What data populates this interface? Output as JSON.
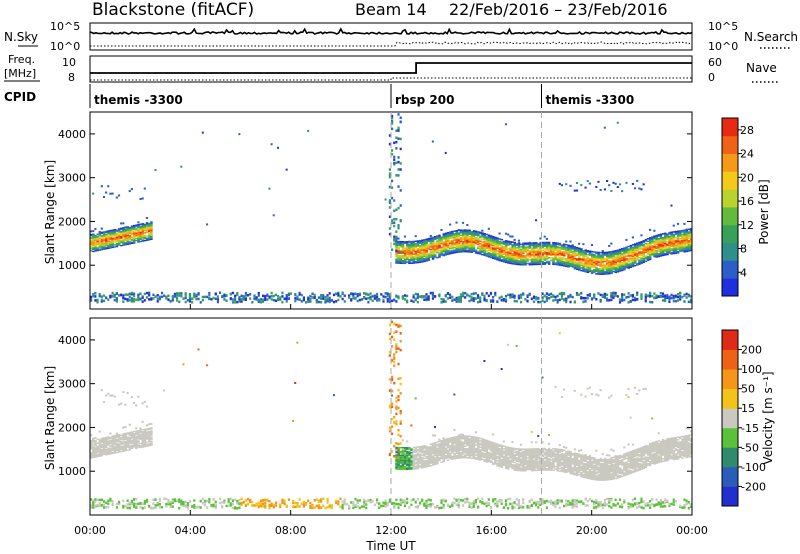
{
  "header": {
    "radar": "Blackstone (fitACF)",
    "beam": "Beam 14",
    "dates": "22/Feb/2016 – 23/Feb/2016"
  },
  "noise_panel": {
    "left_label": "N.Sky",
    "right_label": "N.Search",
    "left_ticks": [
      "10^5",
      "10^0"
    ],
    "right_ticks": [
      "10^5",
      "10^0"
    ]
  },
  "freq_panel": {
    "left_label_line1": "Freq.",
    "left_label_line2": "[MHz]",
    "right_label": "Nave",
    "left_ticks": [
      "10",
      "8"
    ],
    "right_ticks": [
      "60",
      "0"
    ]
  },
  "cpid_panel": {
    "label": "CPID",
    "segments": [
      {
        "name": "themis -3300",
        "start_hour": 0
      },
      {
        "name": "rbsp 200",
        "start_hour": 12
      },
      {
        "name": "themis -3300",
        "start_hour": 18
      }
    ]
  },
  "chart_data": [
    {
      "type": "heatmap",
      "quantity": "power",
      "xlabel": "",
      "ylabel": "Slant Range [km]",
      "xlim_hours": [
        0,
        24
      ],
      "ylim": [
        0,
        4500
      ],
      "yticks": [
        1000,
        2000,
        3000,
        4000
      ],
      "colorbar": {
        "label": "Power [dB]",
        "ticks": [
          4,
          8,
          12,
          16,
          20,
          24,
          28
        ],
        "range": [
          0,
          30
        ],
        "colors": [
          "#1f2fe0",
          "#2c5ec8",
          "#2f8f8a",
          "#39a05a",
          "#62bb3c",
          "#b9d22e",
          "#f3ca1c",
          "#f49a16",
          "#f06216",
          "#e62a14"
        ]
      },
      "features": [
        {
          "name": "early band",
          "hours": [
            0.0,
            2.5
          ],
          "range_km": [
            1300,
            2100
          ],
          "peak_db": 24
        },
        {
          "name": "main band",
          "hours": [
            12.2,
            24.0
          ],
          "range_km": [
            1000,
            2000
          ],
          "peak_db": 22
        },
        {
          "name": "near-range clutter",
          "hours": [
            0.0,
            24.0
          ],
          "range_km": [
            180,
            400
          ],
          "peak_db": 10
        }
      ]
    },
    {
      "type": "heatmap",
      "quantity": "velocity",
      "xlabel": "Time UT",
      "ylabel": "Slant Range [km]",
      "xlim_hours": [
        0,
        24
      ],
      "ylim": [
        0,
        4500
      ],
      "yticks": [
        1000,
        2000,
        3000,
        4000
      ],
      "xticks": [
        "00:00",
        "04:00",
        "08:00",
        "12:00",
        "16:00",
        "20:00",
        "00:00"
      ],
      "colorbar": {
        "label": "Velocity [m s⁻¹]",
        "ticks": [
          "200",
          "100",
          "50",
          "15",
          "-15",
          "-50",
          "-100",
          "-200"
        ],
        "colors": [
          "#1f2fd0",
          "#2a5cb8",
          "#2f8a6e",
          "#59c238",
          "#c9c9c0",
          "#f5c21a",
          "#f4961a",
          "#ee6218",
          "#e02a18"
        ]
      },
      "features": [
        {
          "name": "ground scatter early",
          "hours": [
            0.0,
            2.5
          ],
          "range_km": [
            1300,
            2000
          ],
          "class": "ground"
        },
        {
          "name": "ground scatter main",
          "hours": [
            12.2,
            24.0
          ],
          "range_km": [
            1000,
            2000
          ],
          "class": "ground"
        },
        {
          "name": "near-range flows",
          "hours": [
            0.0,
            24.0
          ],
          "range_km": [
            180,
            400
          ],
          "class": "mixed"
        }
      ]
    }
  ],
  "legend_markers": {
    "nsearch": "dotted",
    "nave": "dotted"
  }
}
